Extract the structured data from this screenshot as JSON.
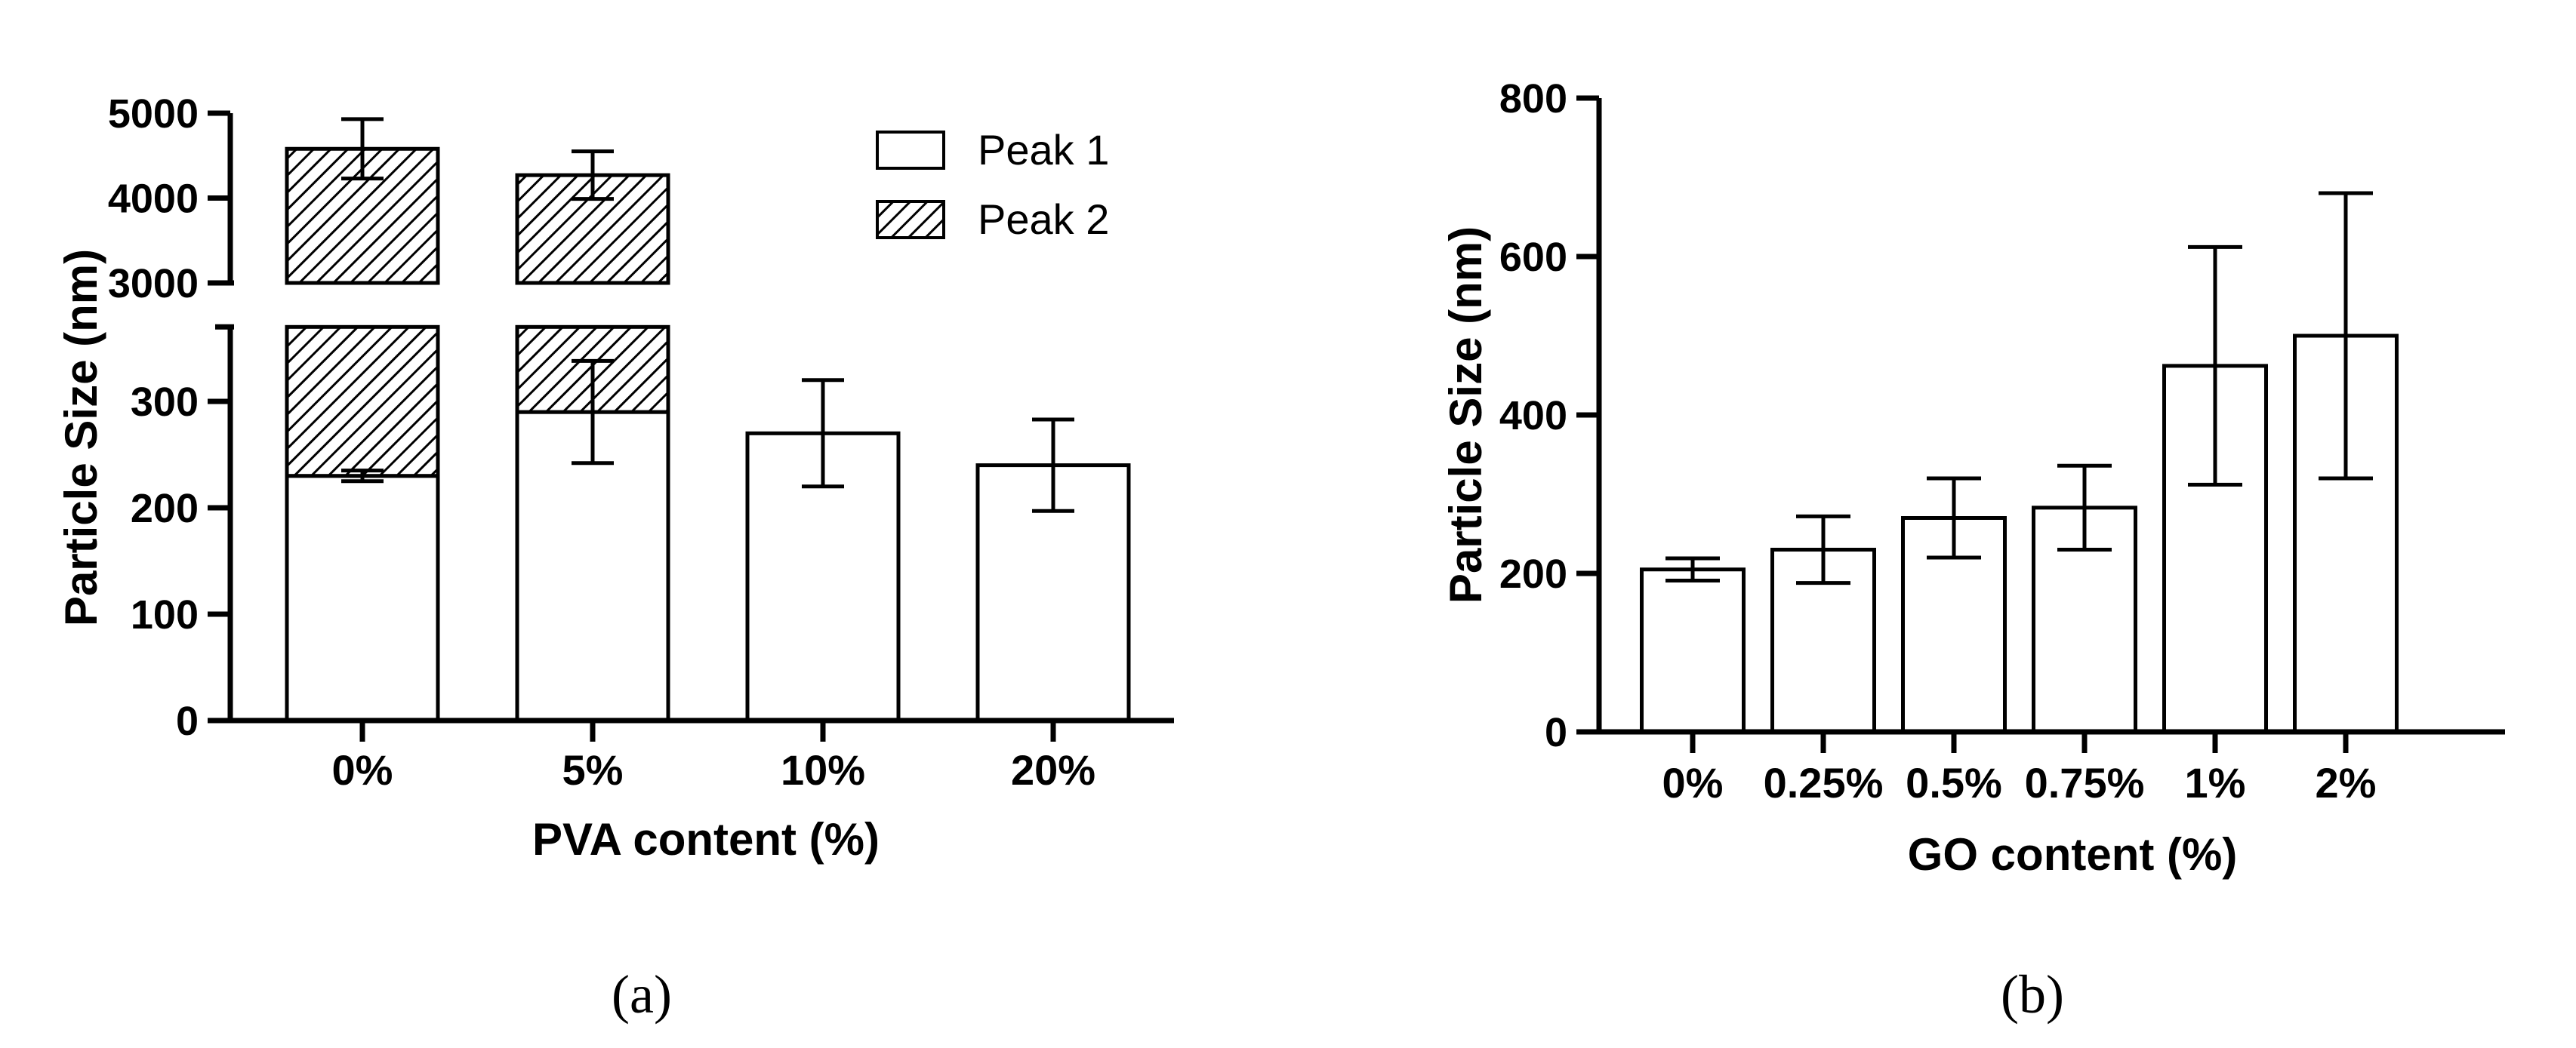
{
  "colors": {
    "ink": "#000000",
    "bar_fill": "#ffffff"
  },
  "chart_data": [
    {
      "panel": "(a)",
      "type": "bar",
      "stacked": true,
      "broken_y_axis": true,
      "xlabel": "PVA content (%)",
      "ylabel": "Particle Size (nm)",
      "categories": [
        "0%",
        "5%",
        "10%",
        "20%"
      ],
      "lower_segment": {
        "ylim": [
          0,
          370
        ],
        "ticks": [
          "0",
          "100",
          "200",
          "300"
        ]
      },
      "upper_segment": {
        "ylim": [
          3000,
          5000
        ],
        "ticks": [
          "3000",
          "4000",
          "5000"
        ]
      },
      "series": [
        {
          "name": "Peak 1",
          "pattern": "open",
          "values": [
            230,
            290,
            270,
            240
          ],
          "errors": [
            5,
            48,
            50,
            43
          ]
        },
        {
          "name": "Peak 2",
          "pattern": "hatched",
          "values": [
            4580,
            4270,
            null,
            null
          ],
          "errors": [
            350,
            280,
            null,
            null
          ]
        }
      ],
      "legend": {
        "position": "top-right",
        "entries": [
          "Peak 1",
          "Peak 2"
        ]
      }
    },
    {
      "panel": "(b)",
      "type": "bar",
      "xlabel": "GO content (%)",
      "ylabel": "Particle Size (nm)",
      "categories": [
        "0%",
        "0.25%",
        "0.5%",
        "0.75%",
        "1%",
        "2%"
      ],
      "ylim": [
        0,
        800
      ],
      "ticks": [
        "0",
        "200",
        "400",
        "600",
        "800"
      ],
      "series": [
        {
          "name": "Particle Size",
          "values": [
            205,
            230,
            270,
            283,
            462,
            500
          ],
          "errors": [
            14,
            42,
            50,
            53,
            150,
            180
          ]
        }
      ]
    }
  ]
}
